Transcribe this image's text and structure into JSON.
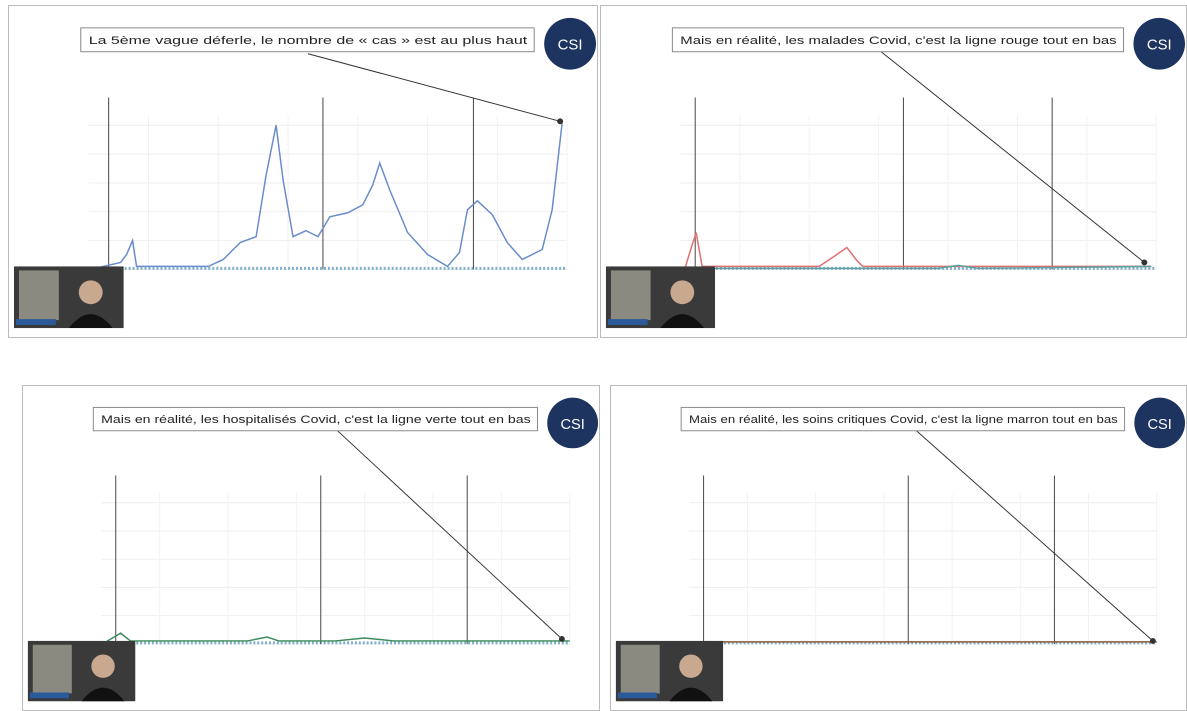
{
  "logo": "CSI",
  "slides": [
    {
      "caption": "La 5ème vague déferle, le nombre de « cas » est au plus haut"
    },
    {
      "caption": "Mais en réalité, les malades Covid, c'est la ligne rouge tout en bas"
    },
    {
      "caption": "Mais en réalité, les hospitalisés Covid, c'est la ligne verte tout en bas"
    },
    {
      "caption": "Mais en réalité, les soins critiques Covid, c'est la ligne marron tout en bas"
    }
  ]
}
